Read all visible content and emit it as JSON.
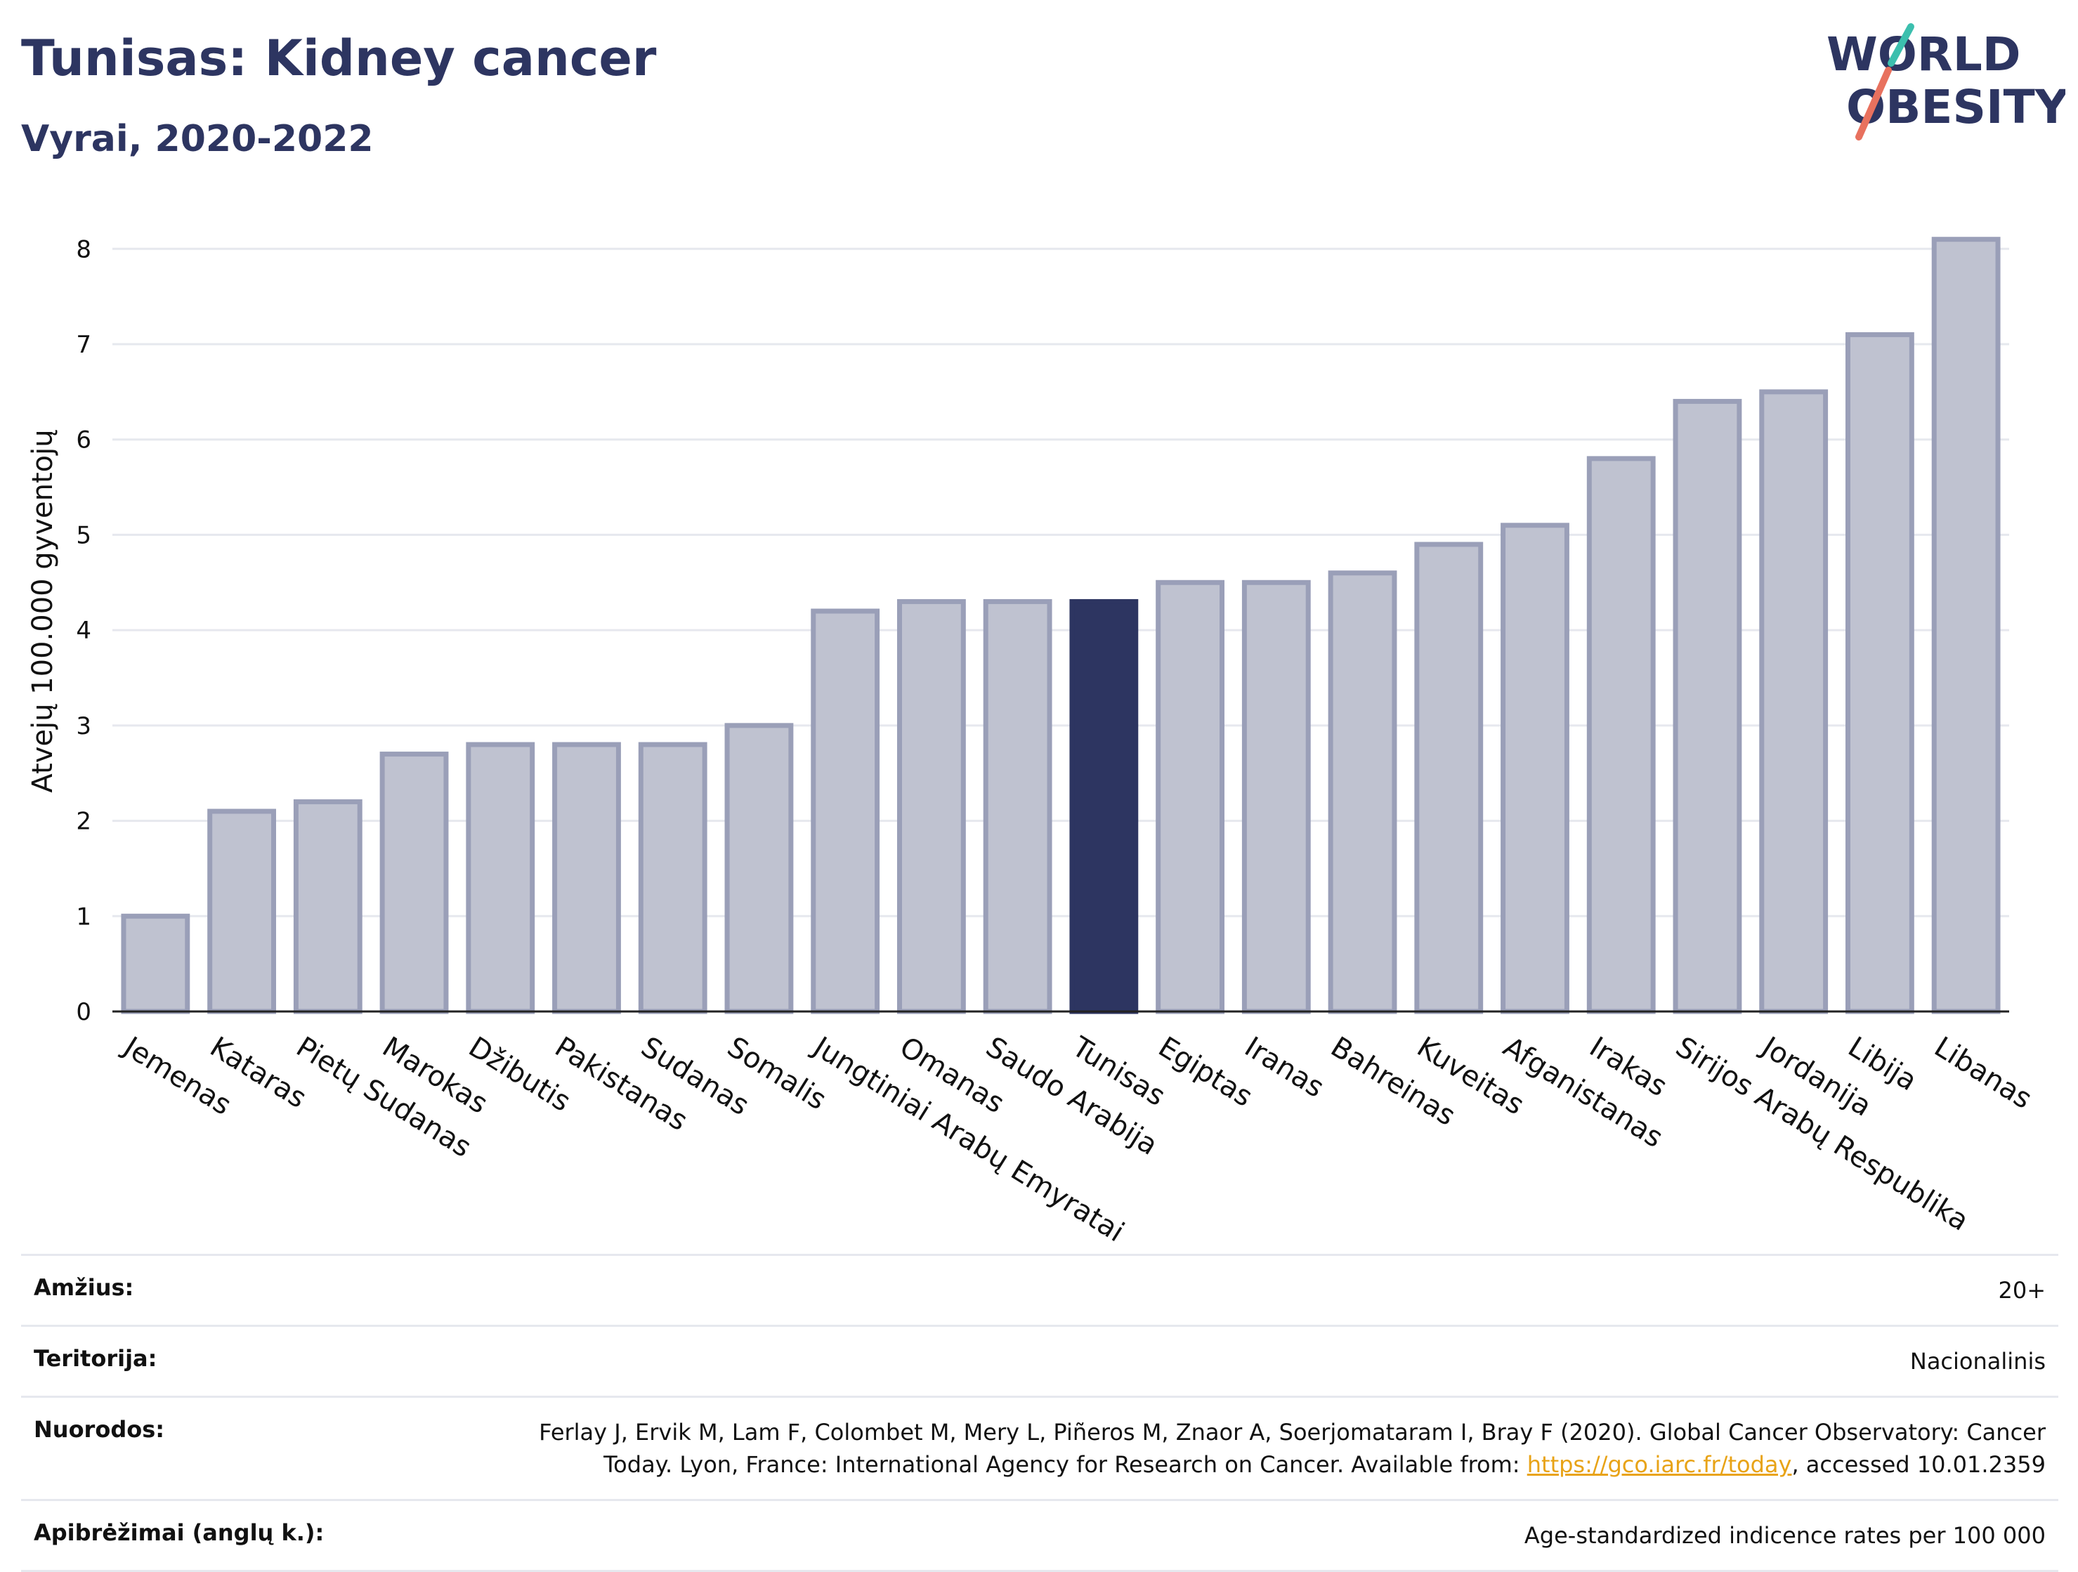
{
  "header": {
    "title": "Tunisas: Kidney cancer",
    "subtitle": "Vyrai, 2020-2022"
  },
  "logo": {
    "line1": "WORLD",
    "line2": "OBESITY"
  },
  "chart_data": {
    "type": "bar",
    "ylabel": "Atvejų 100.000 gyventojų",
    "xlabel": "",
    "ylim": [
      0,
      8.4
    ],
    "yticks": [
      0,
      1,
      2,
      3,
      4,
      5,
      6,
      7,
      8
    ],
    "grid": true,
    "highlight": "Tunisas",
    "colors": {
      "bar": "#bfc2d0",
      "bar_border": "#9a9fb8",
      "highlight": "#2d3561"
    },
    "categories": [
      "Jemenas",
      "Kataras",
      "Pietų Sudanas",
      "Marokas",
      "Džibutis",
      "Pakistanas",
      "Sudanas",
      "Somalis",
      "Jungtiniai Arabų Emyratai",
      "Omanas",
      "Saudo Arabija",
      "Tunisas",
      "Egiptas",
      "Iranas",
      "Bahreinas",
      "Kuveitas",
      "Afganistanas",
      "Irakas",
      "Sirijos Arabų Respublika",
      "Jordanija",
      "Libija",
      "Libanas"
    ],
    "values": [
      1.0,
      2.1,
      2.2,
      2.7,
      2.8,
      2.8,
      2.8,
      3.0,
      4.2,
      4.3,
      4.3,
      4.3,
      4.5,
      4.5,
      4.6,
      4.9,
      5.1,
      5.8,
      6.4,
      6.5,
      7.1,
      8.1
    ]
  },
  "info": {
    "rows": [
      {
        "key": "Amžius:",
        "value": "20+"
      },
      {
        "key": "Teritorija:",
        "value": "Nacionalinis"
      },
      {
        "key": "Nuorodos:",
        "value_pre": "Ferlay J, Ervik M, Lam F, Colombet M, Mery L, Piñeros M, Znaor A, Soerjomataram I, Bray F (2020). Global Cancer Observatory: Cancer Today. Lyon, France: International Agency for Research on Cancer. Available from: ",
        "link": "https://gco.iarc.fr/today",
        "value_post": ", accessed 10.01.2359"
      },
      {
        "key": "Apibrėžimai (anglų k.):",
        "value": "Age-standardized indicence rates per 100 000"
      }
    ]
  }
}
